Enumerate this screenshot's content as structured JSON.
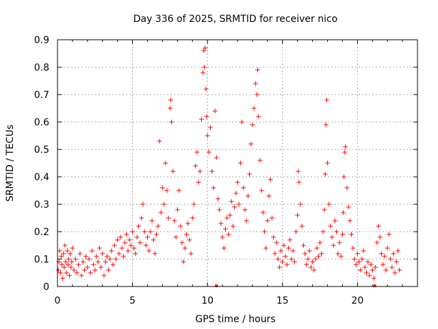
{
  "chart_data": {
    "type": "scatter",
    "title": "Day 336 of 2025, SRMTID for receiver nico",
    "xlabel": "GPS time / hours",
    "ylabel": "SRMTID / TECUs",
    "xlim": [
      0,
      24
    ],
    "ylim": [
      0,
      0.9
    ],
    "xticks": [
      0,
      5,
      10,
      15,
      20
    ],
    "xtick_labels": [
      "0",
      "5",
      "10",
      "15",
      "20"
    ],
    "yticks": [
      0,
      0.1,
      0.2,
      0.3,
      0.4,
      0.5,
      0.6,
      0.7,
      0.8,
      0.9
    ],
    "ytick_labels": [
      "0",
      "0.1",
      "0.2",
      "0.3",
      "0.4",
      "0.5",
      "0.6",
      "0.7",
      "0.8",
      "0.9"
    ],
    "grid": true,
    "marker": "+",
    "color": "#ff0000",
    "series": [
      {
        "name": "SRMTID",
        "points": [
          [
            0.05,
            0.06
          ],
          [
            0.1,
            0.09
          ],
          [
            0.15,
            0.13
          ],
          [
            0.2,
            0.05
          ],
          [
            0.25,
            0.11
          ],
          [
            0.3,
            0.08
          ],
          [
            0.35,
            0.03
          ],
          [
            0.4,
            0.12
          ],
          [
            0.45,
            0.07
          ],
          [
            0.5,
            0.15
          ],
          [
            0.55,
            0.09
          ],
          [
            0.6,
            0.05
          ],
          [
            0.65,
            0.13
          ],
          [
            0.7,
            0.08
          ],
          [
            0.75,
            0.1
          ],
          [
            0.8,
            0.04
          ],
          [
            0.85,
            0.12
          ],
          [
            0.9,
            0.07
          ],
          [
            0.95,
            0.09
          ],
          [
            1.0,
            0.14
          ],
          [
            1.1,
            0.06
          ],
          [
            1.2,
            0.1
          ],
          [
            1.3,
            0.05
          ],
          [
            1.4,
            0.08
          ],
          [
            1.5,
            0.12
          ],
          [
            1.6,
            0.04
          ],
          [
            1.7,
            0.09
          ],
          [
            1.8,
            0.06
          ],
          [
            1.9,
            0.11
          ],
          [
            2.0,
            0.07
          ],
          [
            2.1,
            0.1
          ],
          [
            2.2,
            0.05
          ],
          [
            2.3,
            0.13
          ],
          [
            2.4,
            0.08
          ],
          [
            2.5,
            0.06
          ],
          [
            2.6,
            0.11
          ],
          [
            2.7,
            0.09
          ],
          [
            2.8,
            0.14
          ],
          [
            2.9,
            0.07
          ],
          [
            3.0,
            0.12
          ],
          [
            3.1,
            0.04
          ],
          [
            3.2,
            0.09
          ],
          [
            3.3,
            0.11
          ],
          [
            3.4,
            0.06
          ],
          [
            3.5,
            0.1
          ],
          [
            3.6,
            0.13
          ],
          [
            3.7,
            0.08
          ],
          [
            3.8,
            0.15
          ],
          [
            3.9,
            0.1
          ],
          [
            4.0,
            0.17
          ],
          [
            4.1,
            0.12
          ],
          [
            4.2,
            0.18
          ],
          [
            4.3,
            0.14
          ],
          [
            4.4,
            0.11
          ],
          [
            4.5,
            0.16
          ],
          [
            4.6,
            0.19
          ],
          [
            4.7,
            0.13
          ],
          [
            4.8,
            0.17
          ],
          [
            4.9,
            0.15
          ],
          [
            5.0,
            0.2
          ],
          [
            5.1,
            0.14
          ],
          [
            5.2,
            0.12
          ],
          [
            5.3,
            0.18
          ],
          [
            5.4,
            0.22
          ],
          [
            5.5,
            0.16
          ],
          [
            5.6,
            0.25
          ],
          [
            5.7,
            0.3
          ],
          [
            5.8,
            0.2
          ],
          [
            5.9,
            0.15
          ],
          [
            6.0,
            0.18
          ],
          [
            6.1,
            0.13
          ],
          [
            6.2,
            0.2
          ],
          [
            6.3,
            0.24
          ],
          [
            6.4,
            0.17
          ],
          [
            6.5,
            0.12
          ],
          [
            6.6,
            0.19
          ],
          [
            6.7,
            0.22
          ],
          [
            6.8,
            0.53
          ],
          [
            6.9,
            0.27
          ],
          [
            7.0,
            0.36
          ],
          [
            7.1,
            0.3
          ],
          [
            7.2,
            0.45
          ],
          [
            7.3,
            0.35
          ],
          [
            7.4,
            0.25
          ],
          [
            7.5,
            0.65
          ],
          [
            7.55,
            0.68
          ],
          [
            7.6,
            0.6
          ],
          [
            7.7,
            0.42
          ],
          [
            7.8,
            0.24
          ],
          [
            7.9,
            0.18
          ],
          [
            8.0,
            0.28
          ],
          [
            8.1,
            0.35
          ],
          [
            8.2,
            0.22
          ],
          [
            8.3,
            0.16
          ],
          [
            8.4,
            0.09
          ],
          [
            8.5,
            0.14
          ],
          [
            8.6,
            0.19
          ],
          [
            8.7,
            0.23
          ],
          [
            8.8,
            0.17
          ],
          [
            8.9,
            0.12
          ],
          [
            9.0,
            0.25
          ],
          [
            9.1,
            0.3
          ],
          [
            9.2,
            0.44
          ],
          [
            9.3,
            0.49
          ],
          [
            9.4,
            0.38
          ],
          [
            9.5,
            0.42
          ],
          [
            9.6,
            0.61
          ],
          [
            9.7,
            0.78
          ],
          [
            9.75,
            0.86
          ],
          [
            9.8,
            0.8
          ],
          [
            9.85,
            0.87
          ],
          [
            9.9,
            0.72
          ],
          [
            9.95,
            0.62
          ],
          [
            10.0,
            0.55
          ],
          [
            10.1,
            0.49
          ],
          [
            10.2,
            0.58
          ],
          [
            10.3,
            0.42
          ],
          [
            10.4,
            0.36
          ],
          [
            10.5,
            0.64
          ],
          [
            10.6,
            0.47
          ],
          [
            10.7,
            0.32
          ],
          [
            10.8,
            0.28
          ],
          [
            10.9,
            0.23
          ],
          [
            11.0,
            0.18
          ],
          [
            11.1,
            0.14
          ],
          [
            11.2,
            0.21
          ],
          [
            11.3,
            0.25
          ],
          [
            11.4,
            0.19
          ],
          [
            11.5,
            0.26
          ],
          [
            11.6,
            0.31
          ],
          [
            11.7,
            0.22
          ],
          [
            11.8,
            0.29
          ],
          [
            11.9,
            0.34
          ],
          [
            12.0,
            0.38
          ],
          [
            12.1,
            0.3
          ],
          [
            12.2,
            0.45
          ],
          [
            12.3,
            0.6
          ],
          [
            12.4,
            0.36
          ],
          [
            12.5,
            0.28
          ],
          [
            12.6,
            0.24
          ],
          [
            12.7,
            0.33
          ],
          [
            12.8,
            0.41
          ],
          [
            12.9,
            0.52
          ],
          [
            13.0,
            0.59
          ],
          [
            13.1,
            0.65
          ],
          [
            13.2,
            0.74
          ],
          [
            13.3,
            0.7
          ],
          [
            13.35,
            0.79
          ],
          [
            13.4,
            0.62
          ],
          [
            13.5,
            0.46
          ],
          [
            13.6,
            0.35
          ],
          [
            13.7,
            0.27
          ],
          [
            13.8,
            0.2
          ],
          [
            13.9,
            0.14
          ],
          [
            14.0,
            0.24
          ],
          [
            14.1,
            0.33
          ],
          [
            14.2,
            0.39
          ],
          [
            14.3,
            0.25
          ],
          [
            14.4,
            0.18
          ],
          [
            14.5,
            0.12
          ],
          [
            14.6,
            0.16
          ],
          [
            14.7,
            0.1
          ],
          [
            14.8,
            0.07
          ],
          [
            14.9,
            0.13
          ],
          [
            15.0,
            0.09
          ],
          [
            15.1,
            0.15
          ],
          [
            15.2,
            0.11
          ],
          [
            15.3,
            0.08
          ],
          [
            15.4,
            0.14
          ],
          [
            15.5,
            0.17
          ],
          [
            15.6,
            0.1
          ],
          [
            15.7,
            0.13
          ],
          [
            15.8,
            0.09
          ],
          [
            15.9,
            0.2
          ],
          [
            16.0,
            0.26
          ],
          [
            16.05,
            0.42
          ],
          [
            16.1,
            0.38
          ],
          [
            16.2,
            0.3
          ],
          [
            16.3,
            0.22
          ],
          [
            16.4,
            0.15
          ],
          [
            16.5,
            0.12
          ],
          [
            16.6,
            0.08
          ],
          [
            16.7,
            0.1
          ],
          [
            16.8,
            0.13
          ],
          [
            16.9,
            0.07
          ],
          [
            17.0,
            0.09
          ],
          [
            17.1,
            0.06
          ],
          [
            17.2,
            0.1
          ],
          [
            17.3,
            0.14
          ],
          [
            17.4,
            0.11
          ],
          [
            17.5,
            0.16
          ],
          [
            17.6,
            0.12
          ],
          [
            17.7,
            0.2
          ],
          [
            17.8,
            0.28
          ],
          [
            17.85,
            0.41
          ],
          [
            17.9,
            0.59
          ],
          [
            17.95,
            0.68
          ],
          [
            18.0,
            0.45
          ],
          [
            18.1,
            0.3
          ],
          [
            18.2,
            0.22
          ],
          [
            18.3,
            0.18
          ],
          [
            18.4,
            0.15
          ],
          [
            18.5,
            0.24
          ],
          [
            18.6,
            0.2
          ],
          [
            18.7,
            0.12
          ],
          [
            18.8,
            0.16
          ],
          [
            18.9,
            0.11
          ],
          [
            19.0,
            0.19
          ],
          [
            19.05,
            0.27
          ],
          [
            19.1,
            0.4
          ],
          [
            19.15,
            0.49
          ],
          [
            19.2,
            0.51
          ],
          [
            19.3,
            0.36
          ],
          [
            19.4,
            0.29
          ],
          [
            19.5,
            0.24
          ],
          [
            19.6,
            0.19
          ],
          [
            19.7,
            0.14
          ],
          [
            19.8,
            0.1
          ],
          [
            19.9,
            0.08
          ],
          [
            20.0,
            0.12
          ],
          [
            20.1,
            0.09
          ],
          [
            20.2,
            0.06
          ],
          [
            20.3,
            0.1
          ],
          [
            20.4,
            0.13
          ],
          [
            20.5,
            0.07
          ],
          [
            20.6,
            0.05
          ],
          [
            20.7,
            0.09
          ],
          [
            20.8,
            0.04
          ],
          [
            20.9,
            0.08
          ],
          [
            21.0,
            0.06
          ],
          [
            21.1,
            0.03
          ],
          [
            21.2,
            0.07
          ],
          [
            21.3,
            0.16
          ],
          [
            21.4,
            0.22
          ],
          [
            21.5,
            0.18
          ],
          [
            21.6,
            0.12
          ],
          [
            21.7,
            0.08
          ],
          [
            21.8,
            0.11
          ],
          [
            21.9,
            0.06
          ],
          [
            22.0,
            0.14
          ],
          [
            22.1,
            0.19
          ],
          [
            22.2,
            0.1
          ],
          [
            22.3,
            0.07
          ],
          [
            22.4,
            0.12
          ],
          [
            22.5,
            0.05
          ],
          [
            22.6,
            0.09
          ],
          [
            22.7,
            0.13
          ],
          [
            22.8,
            0.06
          ]
        ]
      }
    ],
    "zero_markers": [
      10.6,
      21.15
    ]
  }
}
